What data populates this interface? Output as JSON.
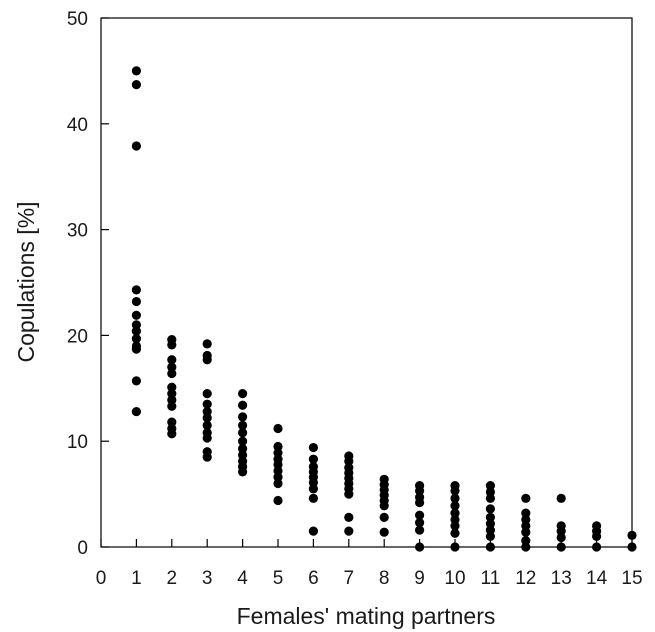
{
  "chart_data": {
    "type": "scatter",
    "title": "",
    "xlabel": "Females' mating partners",
    "ylabel": "Copulations [%]",
    "xlim": [
      0,
      15
    ],
    "ylim": [
      0,
      50
    ],
    "x_ticks": [
      "0",
      "1",
      "2",
      "3",
      "4",
      "5",
      "6",
      "7",
      "8",
      "9",
      "10",
      "11",
      "12",
      "13",
      "14",
      "15"
    ],
    "y_ticks": [
      "0",
      "10",
      "20",
      "30",
      "40",
      "50"
    ],
    "grid": false,
    "legend": "none",
    "marker_color": "#000000",
    "series": [
      {
        "points": [
          [
            1,
            45.0
          ],
          [
            1,
            43.7
          ],
          [
            1,
            37.9
          ],
          [
            1,
            24.3
          ],
          [
            1,
            23.2
          ],
          [
            1,
            21.9
          ],
          [
            1,
            21.0
          ],
          [
            1,
            20.4
          ],
          [
            1,
            19.7
          ],
          [
            1,
            19.0
          ],
          [
            1,
            18.7
          ],
          [
            1,
            15.7
          ],
          [
            1,
            12.8
          ],
          [
            2,
            19.6
          ],
          [
            2,
            19.1
          ],
          [
            2,
            17.7
          ],
          [
            2,
            17.0
          ],
          [
            2,
            16.4
          ],
          [
            2,
            15.1
          ],
          [
            2,
            14.5
          ],
          [
            2,
            13.9
          ],
          [
            2,
            13.3
          ],
          [
            2,
            11.8
          ],
          [
            2,
            11.2
          ],
          [
            2,
            10.7
          ],
          [
            3,
            19.2
          ],
          [
            3,
            18.1
          ],
          [
            3,
            17.7
          ],
          [
            3,
            14.5
          ],
          [
            3,
            13.5
          ],
          [
            3,
            12.8
          ],
          [
            3,
            12.2
          ],
          [
            3,
            11.5
          ],
          [
            3,
            10.8
          ],
          [
            3,
            10.3
          ],
          [
            3,
            9.0
          ],
          [
            3,
            8.5
          ],
          [
            4,
            14.5
          ],
          [
            4,
            13.4
          ],
          [
            4,
            12.3
          ],
          [
            4,
            11.5
          ],
          [
            4,
            10.8
          ],
          [
            4,
            10.0
          ],
          [
            4,
            9.3
          ],
          [
            4,
            8.7
          ],
          [
            4,
            8.1
          ],
          [
            4,
            7.6
          ],
          [
            4,
            7.1
          ],
          [
            5,
            11.2
          ],
          [
            5,
            9.5
          ],
          [
            5,
            8.9
          ],
          [
            5,
            8.3
          ],
          [
            5,
            7.8
          ],
          [
            5,
            7.2
          ],
          [
            5,
            6.6
          ],
          [
            5,
            6.0
          ],
          [
            5,
            4.4
          ],
          [
            6,
            9.4
          ],
          [
            6,
            8.3
          ],
          [
            6,
            7.6
          ],
          [
            6,
            7.1
          ],
          [
            6,
            6.6
          ],
          [
            6,
            6.1
          ],
          [
            6,
            5.5
          ],
          [
            6,
            4.6
          ],
          [
            6,
            1.5
          ],
          [
            7,
            8.6
          ],
          [
            7,
            8.1
          ],
          [
            7,
            7.5
          ],
          [
            7,
            7.0
          ],
          [
            7,
            6.5
          ],
          [
            7,
            6.0
          ],
          [
            7,
            5.5
          ],
          [
            7,
            5.0
          ],
          [
            7,
            2.8
          ],
          [
            7,
            1.5
          ],
          [
            8,
            6.4
          ],
          [
            8,
            5.9
          ],
          [
            8,
            5.4
          ],
          [
            8,
            4.9
          ],
          [
            8,
            4.4
          ],
          [
            8,
            3.9
          ],
          [
            8,
            2.8
          ],
          [
            8,
            1.4
          ],
          [
            9,
            5.8
          ],
          [
            9,
            5.3
          ],
          [
            9,
            4.7
          ],
          [
            9,
            4.2
          ],
          [
            9,
            3.0
          ],
          [
            9,
            2.3
          ],
          [
            9,
            1.6
          ],
          [
            9,
            0.0
          ],
          [
            10,
            5.8
          ],
          [
            10,
            5.3
          ],
          [
            10,
            4.6
          ],
          [
            10,
            3.9
          ],
          [
            10,
            3.2
          ],
          [
            10,
            2.6
          ],
          [
            10,
            2.0
          ],
          [
            10,
            1.3
          ],
          [
            10,
            0.0
          ],
          [
            11,
            5.8
          ],
          [
            11,
            5.2
          ],
          [
            11,
            4.6
          ],
          [
            11,
            3.6
          ],
          [
            11,
            2.8
          ],
          [
            11,
            2.2
          ],
          [
            11,
            1.6
          ],
          [
            11,
            1.0
          ],
          [
            11,
            0.0
          ],
          [
            12,
            4.6
          ],
          [
            12,
            3.2
          ],
          [
            12,
            2.6
          ],
          [
            12,
            2.0
          ],
          [
            12,
            1.4
          ],
          [
            12,
            0.6
          ],
          [
            12,
            0.0
          ],
          [
            13,
            4.6
          ],
          [
            13,
            2.0
          ],
          [
            13,
            1.5
          ],
          [
            13,
            0.9
          ],
          [
            13,
            0.0
          ],
          [
            14,
            2.0
          ],
          [
            14,
            1.5
          ],
          [
            14,
            1.0
          ],
          [
            14,
            0.0
          ],
          [
            15,
            1.1
          ],
          [
            15,
            0.0
          ]
        ]
      }
    ]
  }
}
